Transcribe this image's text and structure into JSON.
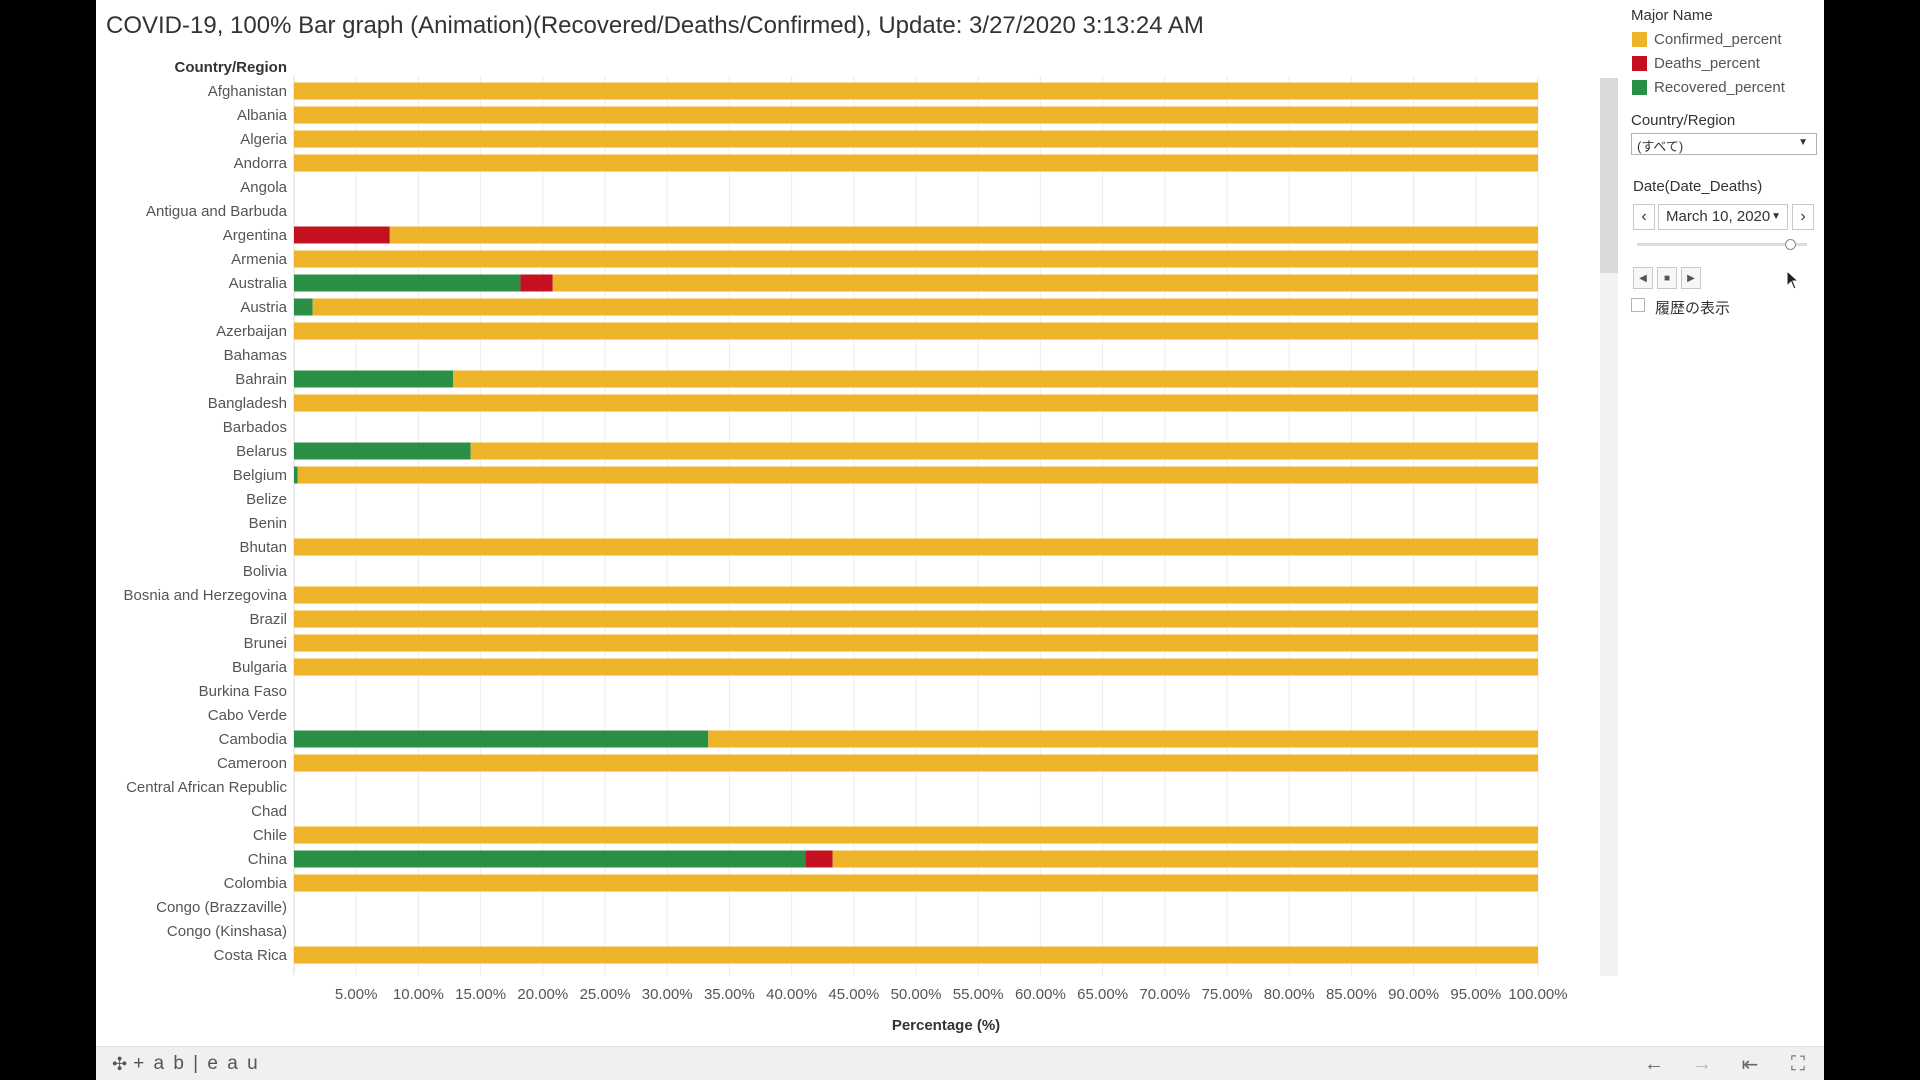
{
  "title": "COVID-19, 100% Bar graph (Animation)(Recovered/Deaths/Confirmed), Update: 3/27/2020 3:13:24 AM",
  "legend": {
    "title": "Major Name",
    "items": [
      {
        "label": "Confirmed_percent",
        "color": "#EDB42A"
      },
      {
        "label": "Deaths_percent",
        "color": "#C4111F"
      },
      {
        "label": "Recovered_percent",
        "color": "#2A8F45"
      }
    ]
  },
  "country_filter": {
    "title": "Country/Region",
    "value": "(すべて)"
  },
  "date_filter": {
    "title": "Date(Date_Deaths)",
    "value": "March 10, 2020",
    "slider_position": 0.9
  },
  "history": {
    "label": "履歴の表示",
    "checked": false
  },
  "toolbar": {
    "logo": "+ a b | e a u"
  },
  "chart_data": {
    "type": "bar",
    "stacked": "100%",
    "orientation": "horizontal",
    "title": "",
    "xlabel": "Percentage (%)",
    "ylabel": "Country/Region",
    "xlim": [
      0,
      100
    ],
    "x_ticks": [
      "5.00%",
      "10.00%",
      "15.00%",
      "20.00%",
      "25.00%",
      "30.00%",
      "35.00%",
      "40.00%",
      "45.00%",
      "50.00%",
      "55.00%",
      "60.00%",
      "65.00%",
      "70.00%",
      "75.00%",
      "80.00%",
      "85.00%",
      "90.00%",
      "95.00%",
      "100.00%"
    ],
    "categories": [
      "Afghanistan",
      "Albania",
      "Algeria",
      "Andorra",
      "Angola",
      "Antigua and Barbuda",
      "Argentina",
      "Armenia",
      "Australia",
      "Austria",
      "Azerbaijan",
      "Bahamas",
      "Bahrain",
      "Bangladesh",
      "Barbados",
      "Belarus",
      "Belgium",
      "Belize",
      "Benin",
      "Bhutan",
      "Bolivia",
      "Bosnia and Herzegovina",
      "Brazil",
      "Brunei",
      "Bulgaria",
      "Burkina Faso",
      "Cabo Verde",
      "Cambodia",
      "Cameroon",
      "Central African Republic",
      "Chad",
      "Chile",
      "China",
      "Colombia",
      "Congo (Brazzaville)",
      "Congo (Kinshasa)",
      "Costa Rica"
    ],
    "series": [
      {
        "name": "Recovered_percent",
        "color": "#2A8F45",
        "values": [
          0,
          0,
          0,
          0,
          null,
          null,
          0,
          0,
          18.2,
          1.5,
          0,
          null,
          12.8,
          0,
          null,
          14.2,
          0.3,
          null,
          null,
          0,
          null,
          0,
          0,
          0,
          0,
          null,
          null,
          33.3,
          0,
          null,
          null,
          0,
          41.1,
          0,
          null,
          null,
          0
        ]
      },
      {
        "name": "Deaths_percent",
        "color": "#C4111F",
        "values": [
          0,
          0,
          0,
          0,
          null,
          null,
          7.7,
          0,
          2.6,
          0,
          0,
          null,
          0,
          0,
          null,
          0,
          0,
          null,
          null,
          0,
          null,
          0,
          0,
          0,
          0,
          null,
          null,
          0,
          0,
          null,
          null,
          0,
          2.2,
          0,
          null,
          null,
          0
        ]
      },
      {
        "name": "Confirmed_percent",
        "color": "#EDB42A",
        "values": [
          100,
          100,
          100,
          100,
          null,
          null,
          92.3,
          100,
          79.2,
          98.5,
          100,
          null,
          87.2,
          100,
          null,
          85.8,
          99.7,
          null,
          null,
          100,
          null,
          100,
          100,
          100,
          100,
          null,
          null,
          66.7,
          100,
          null,
          null,
          100,
          56.7,
          100,
          null,
          null,
          100
        ]
      }
    ]
  }
}
